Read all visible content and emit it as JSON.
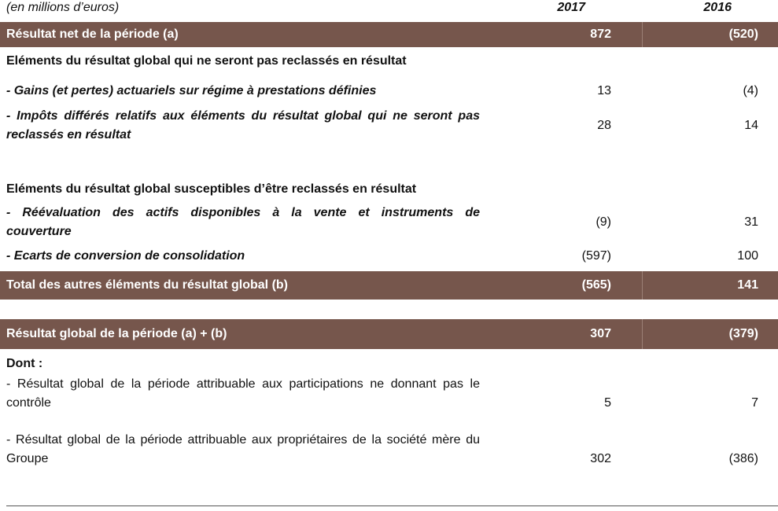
{
  "header": {
    "unit": "(en millions d’euros)",
    "col_2017": "2017",
    "col_2016": "2016"
  },
  "rows": {
    "net_result": {
      "label": "Résultat net de la période (a)",
      "v2017": "872",
      "v2016": "(520)"
    },
    "not_reclassified_heading": {
      "label": "Eléments du résultat global qui ne seront pas reclassés en résultat"
    },
    "actuarial_gains": {
      "label": "- Gains (et pertes) actuariels sur régime à prestations définies",
      "v2017": "13",
      "v2016": "(4)"
    },
    "deferred_taxes": {
      "label": "- Impôts différés relatifs aux éléments du résultat global qui ne seront pas reclassés en résultat",
      "v2017": "28",
      "v2016": "14"
    },
    "reclassifiable_heading": {
      "label": "Eléments du résultat global susceptibles d’être reclassés en résultat"
    },
    "revaluation": {
      "label": "- Réévaluation des actifs disponibles à la vente et instruments de couverture",
      "v2017": "(9)",
      "v2016": "31"
    },
    "translation": {
      "label": "- Ecarts de conversion de consolidation",
      "v2017": "(597)",
      "v2016": "100"
    },
    "total_other": {
      "label": "Total des autres éléments du résultat global (b)",
      "v2017": "(565)",
      "v2016": "141"
    },
    "global_result": {
      "label": "Résultat global de la période (a) + (b)",
      "v2017": "307",
      "v2016": "(379)"
    },
    "dont": {
      "label": "Dont :"
    },
    "minority": {
      "label": "- Résultat global de la période attribuable aux participations ne donnant pas le contrôle",
      "v2017": "5",
      "v2016": "7"
    },
    "owners": {
      "label": "- Résultat global de la période attribuable aux propriétaires de la société mère du Groupe",
      "v2017": "302",
      "v2016": "(386)"
    }
  },
  "colors": {
    "band": "#76564c",
    "band_text": "#ffffff",
    "text": "#111111"
  }
}
